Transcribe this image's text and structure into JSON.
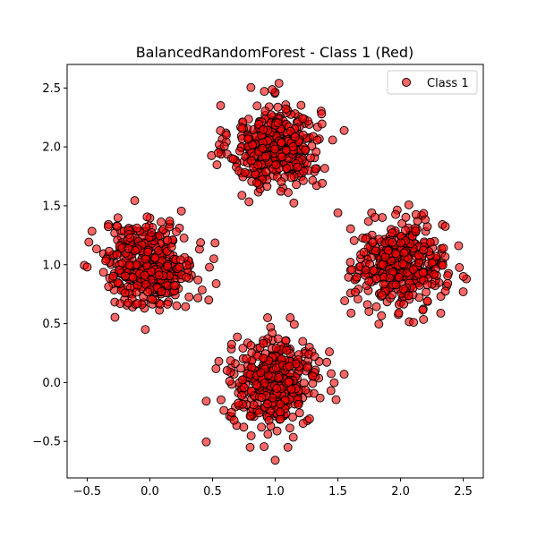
{
  "chart_data": {
    "type": "scatter",
    "title": "BalancedRandomForest - Class 1 (Red)",
    "xlabel": "",
    "ylabel": "",
    "xlim": [
      -0.66,
      2.66
    ],
    "ylim": [
      -0.81,
      2.7
    ],
    "xticks": [
      -0.5,
      0.0,
      0.5,
      1.0,
      1.5,
      2.0,
      2.5
    ],
    "xtick_labels": [
      "−0.5",
      "0.0",
      "0.5",
      "1.0",
      "1.5",
      "2.0",
      "2.5"
    ],
    "yticks": [
      -0.5,
      0.0,
      0.5,
      1.0,
      1.5,
      2.0,
      2.5
    ],
    "ytick_labels": [
      "−0.5",
      "0.0",
      "0.5",
      "1.0",
      "1.5",
      "2.0",
      "2.5"
    ],
    "grid": false,
    "legend": {
      "placement": "top-right",
      "entries": [
        "Class 1"
      ]
    },
    "series": [
      {
        "name": "Class 1",
        "color": "#ff0000",
        "edgecolor": "#000000",
        "alpha": 0.6,
        "clusters": [
          {
            "center": [
              1.0,
              2.0
            ],
            "spread": 0.18,
            "count": 400
          },
          {
            "center": [
              0.0,
              1.0
            ],
            "spread": 0.18,
            "count": 400
          },
          {
            "center": [
              2.0,
              1.0
            ],
            "spread": 0.18,
            "count": 400
          },
          {
            "center": [
              1.0,
              0.0
            ],
            "spread": 0.18,
            "count": 400
          }
        ],
        "outliers": [
          [
            1.0,
            -0.66
          ],
          [
            0.8,
            -0.55
          ],
          [
            2.5,
            0.77
          ],
          [
            -0.5,
            0.98
          ],
          [
            1.03,
            2.54
          ],
          [
            1.5,
            1.44
          ],
          [
            0.55,
            0.18
          ],
          [
            0.47,
            0.7
          ]
        ]
      }
    ]
  }
}
